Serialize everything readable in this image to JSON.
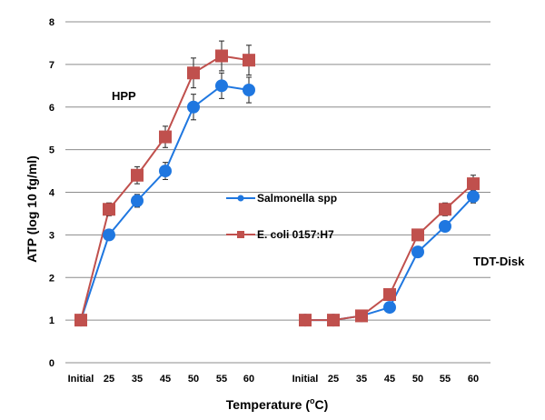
{
  "chart_data": {
    "type": "line",
    "xlabel": "Temperature (",
    "xlabel_sup": "o",
    "xlabel_tail": "C)",
    "ylabel": "ATP (log 10 fg/ml)",
    "ylim": [
      0,
      8
    ],
    "yticks": [
      "0",
      "1",
      "2",
      "3",
      "4",
      "5",
      "6",
      "7",
      "8"
    ],
    "grid": "horizontal",
    "legend_position": "center-right",
    "annotations": [
      "HPP",
      "TDT-Disk"
    ],
    "groups": [
      {
        "label": "HPP",
        "x": [
          "Initial",
          "25",
          "35",
          "45",
          "50",
          "55",
          "60"
        ]
      },
      {
        "label": "TDT-Disk",
        "x": [
          "Initial",
          "25",
          "35",
          "45",
          "50",
          "55",
          "60"
        ]
      }
    ],
    "series": [
      {
        "name": "Salmonella spp",
        "color": "#1f77e0",
        "marker": "circle",
        "groups": [
          {
            "values": [
              1.0,
              3.0,
              3.8,
              4.5,
              6.0,
              6.5,
              6.4
            ],
            "errors": [
              0,
              0.1,
              0.15,
              0.2,
              0.3,
              0.3,
              0.3
            ]
          },
          {
            "values": [
              1.0,
              1.0,
              1.1,
              1.3,
              2.6,
              3.2,
              3.9
            ],
            "errors": [
              0,
              0,
              0,
              0,
              0.05,
              0.1,
              0.15
            ]
          }
        ]
      },
      {
        "name": "E. coli 0157:H7",
        "color": "#c0504d",
        "marker": "square",
        "groups": [
          {
            "values": [
              1.0,
              3.6,
              4.4,
              5.3,
              6.8,
              7.2,
              7.1
            ],
            "errors": [
              0,
              0.15,
              0.2,
              0.25,
              0.35,
              0.35,
              0.35
            ]
          },
          {
            "values": [
              1.0,
              1.0,
              1.1,
              1.6,
              3.0,
              3.6,
              4.2
            ],
            "errors": [
              0,
              0,
              0,
              0,
              0.1,
              0.15,
              0.2
            ]
          }
        ]
      }
    ]
  }
}
